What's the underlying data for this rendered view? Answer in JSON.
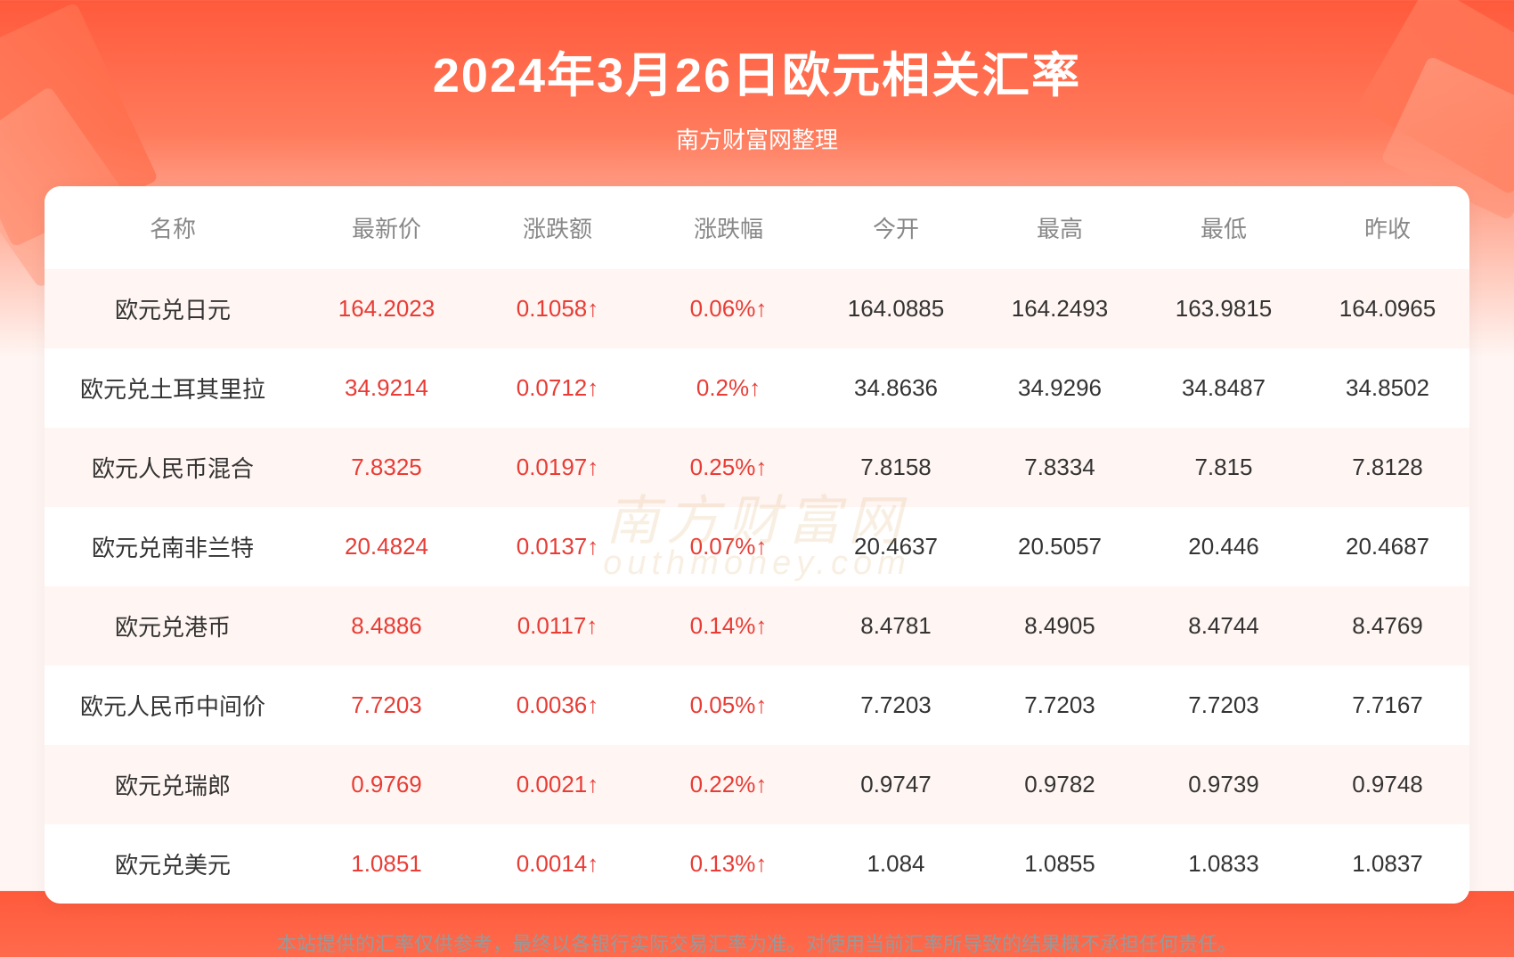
{
  "header": {
    "title": "2024年3月26日欧元相关汇率",
    "subtitle": "南方财富网整理"
  },
  "table": {
    "columns": [
      "名称",
      "最新价",
      "涨跌额",
      "涨跌幅",
      "今开",
      "最高",
      "最低",
      "昨收"
    ],
    "rows": [
      {
        "name": "欧元兑日元",
        "latest": "164.2023",
        "change": "0.1058↑",
        "pct": "0.06%↑",
        "open": "164.0885",
        "high": "164.2493",
        "low": "163.9815",
        "prev": "164.0965"
      },
      {
        "name": "欧元兑土耳其里拉",
        "latest": "34.9214",
        "change": "0.0712↑",
        "pct": "0.2%↑",
        "open": "34.8636",
        "high": "34.9296",
        "low": "34.8487",
        "prev": "34.8502"
      },
      {
        "name": "欧元人民币混合",
        "latest": "7.8325",
        "change": "0.0197↑",
        "pct": "0.25%↑",
        "open": "7.8158",
        "high": "7.8334",
        "low": "7.815",
        "prev": "7.8128"
      },
      {
        "name": "欧元兑南非兰特",
        "latest": "20.4824",
        "change": "0.0137↑",
        "pct": "0.07%↑",
        "open": "20.4637",
        "high": "20.5057",
        "low": "20.446",
        "prev": "20.4687"
      },
      {
        "name": "欧元兑港币",
        "latest": "8.4886",
        "change": "0.0117↑",
        "pct": "0.14%↑",
        "open": "8.4781",
        "high": "8.4905",
        "low": "8.4744",
        "prev": "8.4769"
      },
      {
        "name": "欧元人民币中间价",
        "latest": "7.7203",
        "change": "0.0036↑",
        "pct": "0.05%↑",
        "open": "7.7203",
        "high": "7.7203",
        "low": "7.7203",
        "prev": "7.7167"
      },
      {
        "name": "欧元兑瑞郎",
        "latest": "0.9769",
        "change": "0.0021↑",
        "pct": "0.22%↑",
        "open": "0.9747",
        "high": "0.9782",
        "low": "0.9739",
        "prev": "0.9748"
      },
      {
        "name": "欧元兑美元",
        "latest": "1.0851",
        "change": "0.0014↑",
        "pct": "0.13%↑",
        "open": "1.084",
        "high": "1.0855",
        "low": "1.0833",
        "prev": "1.0837"
      }
    ]
  },
  "watermark": {
    "cn": "南方财富网",
    "en": "outhmoney.com"
  },
  "disclaimer": "本站提供的汇率仅供参考，最终以各银行实际交易汇率为准。对使用当前汇率所导致的结果概不承担任何责任。",
  "colors": {
    "gradient_start": "#ff5a3c",
    "gradient_end": "#fff5f2",
    "title_color": "#ffffff",
    "header_text": "#888888",
    "body_text": "#333333",
    "up_color": "#e83c35",
    "row_odd_bg": "#fff5f2",
    "row_even_bg": "#ffffff",
    "watermark_color": "#d9a866",
    "disclaimer_color": "#999999"
  },
  "typography": {
    "title_fontsize": 54,
    "subtitle_fontsize": 26,
    "header_fontsize": 26,
    "cell_fontsize": 26,
    "disclaimer_fontsize": 22
  }
}
